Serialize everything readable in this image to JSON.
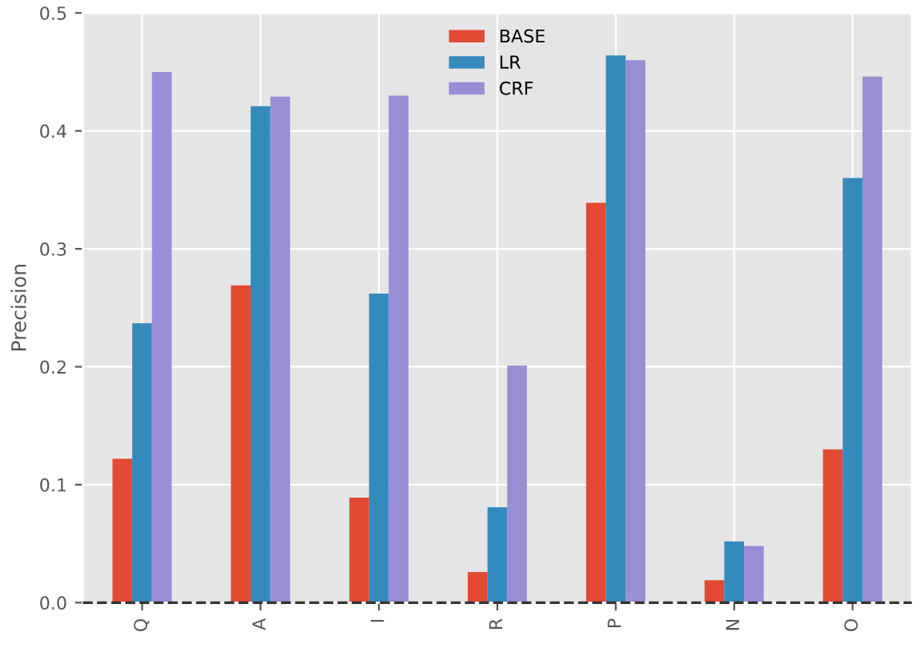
{
  "chart_data": {
    "type": "bar",
    "ylabel": "Precision",
    "categories": [
      "Q",
      "A",
      "I",
      "R",
      "P",
      "N",
      "O"
    ],
    "series": [
      {
        "name": "BASE",
        "color": "#e24a33",
        "values": [
          0.122,
          0.269,
          0.089,
          0.026,
          0.339,
          0.019,
          0.13
        ]
      },
      {
        "name": "LR",
        "color": "#348abd",
        "values": [
          0.237,
          0.421,
          0.262,
          0.081,
          0.464,
          0.052,
          0.36
        ]
      },
      {
        "name": "CRF",
        "color": "#988ed5",
        "values": [
          0.45,
          0.429,
          0.43,
          0.201,
          0.46,
          0.048,
          0.446
        ]
      }
    ],
    "ylim": [
      0,
      0.5
    ],
    "yticks": [
      {
        "value": 0,
        "label": "0.0"
      },
      0.1,
      0.2,
      0.3,
      0.4,
      0.5
    ],
    "ref_lines": [
      {
        "axis": "y",
        "value": 0,
        "color": "#333333",
        "line_style": "dashed"
      }
    ],
    "grid": true,
    "legend": "top"
  }
}
